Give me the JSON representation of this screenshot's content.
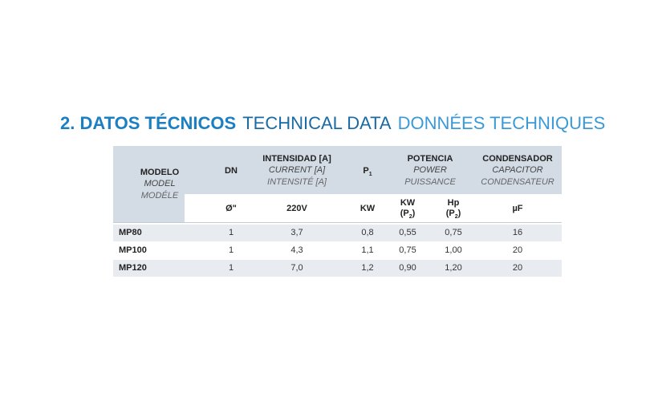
{
  "title": {
    "es": "2. DATOS TÉCNICOS",
    "en": "TECHNICAL DATA",
    "fr": "DONNÉES TECHNIQUES"
  },
  "table": {
    "header": {
      "model": {
        "es": "MODELO",
        "en": "MODEL",
        "fr": "MODÉLE"
      },
      "dn": {
        "es": "DN"
      },
      "current": {
        "es": "INTENSIDAD [A]",
        "en": "CURRENT [A]",
        "fr": "INTENSITÉ [A]"
      },
      "p1": {
        "symbol": "P",
        "sub": "1"
      },
      "power": {
        "es": "POTENCIA",
        "en": "POWER",
        "fr": "PUISSANCE"
      },
      "capacitor": {
        "es": "CONDENSADOR",
        "en": "CAPACITOR",
        "fr": "CONDENSATEUR"
      }
    },
    "units": {
      "dn": "Ø\"",
      "current": "220V",
      "p1": "KW",
      "kw": {
        "unit": "KW",
        "open": "(P",
        "sub": "2",
        "close": ")"
      },
      "hp": {
        "unit": "Hp",
        "open": "(P",
        "sub": "2",
        "close": ")"
      },
      "capacitor": "µF"
    },
    "rows": [
      [
        "MP80",
        "1",
        "3,7",
        "0,8",
        "0,55",
        "0,75",
        "16"
      ],
      [
        "MP100",
        "1",
        "4,3",
        "1,1",
        "0,75",
        "1,00",
        "20"
      ],
      [
        "MP120",
        "1",
        "7,0",
        "1,2",
        "0,90",
        "1,20",
        "20"
      ]
    ]
  }
}
